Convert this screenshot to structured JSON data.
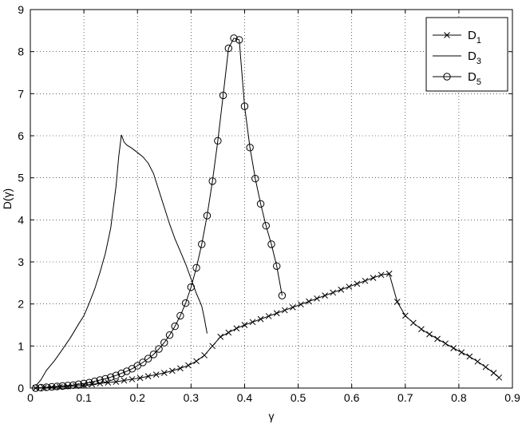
{
  "chart_data": {
    "type": "line",
    "title": "",
    "xlabel": "γ",
    "ylabel": "D(γ)",
    "xlim": [
      0,
      0.9
    ],
    "ylim": [
      0,
      9
    ],
    "x_ticks": [
      "0",
      "0.1",
      "0.2",
      "0.3",
      "0.4",
      "0.5",
      "0.6",
      "0.7",
      "0.8",
      "0.9"
    ],
    "y_ticks": [
      "0",
      "1",
      "2",
      "3",
      "4",
      "5",
      "6",
      "7",
      "8",
      "9"
    ],
    "grid": true,
    "legend_position": "top-right",
    "series": [
      {
        "name": "D",
        "sub": "1",
        "marker": "x",
        "x": [
          0.01,
          0.025,
          0.04,
          0.055,
          0.07,
          0.085,
          0.1,
          0.115,
          0.13,
          0.145,
          0.16,
          0.175,
          0.19,
          0.205,
          0.22,
          0.235,
          0.25,
          0.265,
          0.28,
          0.295,
          0.31,
          0.325,
          0.34,
          0.355,
          0.37,
          0.385,
          0.4,
          0.415,
          0.43,
          0.445,
          0.46,
          0.475,
          0.49,
          0.505,
          0.52,
          0.535,
          0.55,
          0.565,
          0.58,
          0.595,
          0.61,
          0.625,
          0.64,
          0.655,
          0.67,
          0.685,
          0.7,
          0.715,
          0.73,
          0.745,
          0.76,
          0.775,
          0.79,
          0.805,
          0.82,
          0.835,
          0.85,
          0.865,
          0.875
        ],
        "y": [
          0.0,
          0.01,
          0.02,
          0.03,
          0.04,
          0.05,
          0.07,
          0.09,
          0.11,
          0.13,
          0.15,
          0.18,
          0.21,
          0.24,
          0.28,
          0.32,
          0.36,
          0.41,
          0.47,
          0.54,
          0.64,
          0.78,
          1.0,
          1.22,
          1.32,
          1.42,
          1.5,
          1.57,
          1.64,
          1.71,
          1.78,
          1.85,
          1.92,
          1.99,
          2.06,
          2.13,
          2.2,
          2.27,
          2.34,
          2.41,
          2.48,
          2.55,
          2.62,
          2.69,
          2.72,
          2.05,
          1.72,
          1.55,
          1.4,
          1.28,
          1.17,
          1.06,
          0.95,
          0.85,
          0.75,
          0.63,
          0.5,
          0.36,
          0.25
        ]
      },
      {
        "name": "D",
        "sub": "3",
        "marker": "none",
        "x": [
          0.01,
          0.02,
          0.03,
          0.045,
          0.06,
          0.075,
          0.09,
          0.1,
          0.11,
          0.12,
          0.13,
          0.14,
          0.15,
          0.16,
          0.165,
          0.17,
          0.175,
          0.18,
          0.19,
          0.2,
          0.21,
          0.22,
          0.23,
          0.24,
          0.25,
          0.26,
          0.27,
          0.28,
          0.29,
          0.3,
          0.31,
          0.32,
          0.325,
          0.33
        ],
        "y": [
          0.05,
          0.2,
          0.42,
          0.65,
          0.92,
          1.2,
          1.52,
          1.72,
          2.02,
          2.35,
          2.75,
          3.2,
          3.8,
          4.8,
          5.5,
          6.02,
          5.85,
          5.78,
          5.7,
          5.6,
          5.5,
          5.35,
          5.1,
          4.7,
          4.3,
          3.9,
          3.55,
          3.25,
          2.95,
          2.6,
          2.25,
          1.95,
          1.65,
          1.3
        ]
      },
      {
        "name": "D",
        "sub": "5",
        "marker": "o",
        "x": [
          0.01,
          0.02,
          0.03,
          0.04,
          0.05,
          0.06,
          0.07,
          0.08,
          0.09,
          0.1,
          0.11,
          0.12,
          0.13,
          0.14,
          0.15,
          0.16,
          0.17,
          0.18,
          0.19,
          0.2,
          0.21,
          0.22,
          0.23,
          0.24,
          0.25,
          0.26,
          0.27,
          0.28,
          0.29,
          0.3,
          0.31,
          0.32,
          0.33,
          0.34,
          0.35,
          0.36,
          0.37,
          0.38,
          0.39,
          0.4,
          0.41,
          0.42,
          0.43,
          0.44,
          0.45,
          0.46,
          0.47
        ],
        "y": [
          0.0,
          0.01,
          0.02,
          0.03,
          0.04,
          0.05,
          0.06,
          0.07,
          0.09,
          0.11,
          0.13,
          0.16,
          0.19,
          0.22,
          0.26,
          0.3,
          0.35,
          0.4,
          0.46,
          0.53,
          0.61,
          0.7,
          0.8,
          0.93,
          1.08,
          1.26,
          1.47,
          1.72,
          2.02,
          2.4,
          2.86,
          3.42,
          4.1,
          4.92,
          5.88,
          6.96,
          8.08,
          8.32,
          8.28,
          6.7,
          5.72,
          4.98,
          4.38,
          3.86,
          3.42,
          2.9,
          2.2
        ]
      }
    ]
  }
}
